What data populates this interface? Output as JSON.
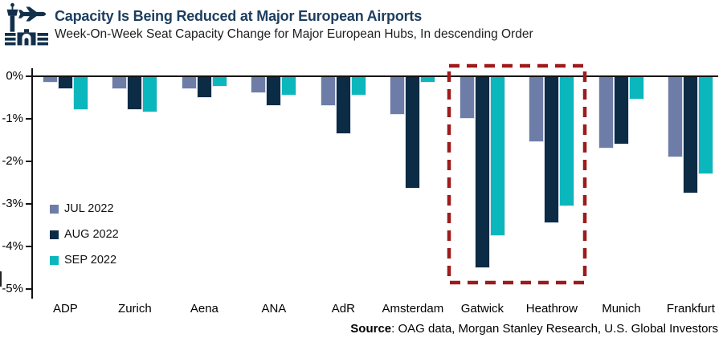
{
  "header": {
    "title": "Capacity Is Being Reduced at Major European Airports",
    "subtitle": "Week-On-Week Seat Capacity Change for Major European Hubs, In descending Order"
  },
  "colors": {
    "title_navy": "#1d3e5f",
    "icon_navy": "#12304b",
    "jul": "#6e7da7",
    "aug": "#0c2b45",
    "sep": "#0ab7bc",
    "highlight_red": "#9e1b1b",
    "axis": "#111111"
  },
  "chart_data": {
    "type": "bar",
    "title": "Capacity Is Being Reduced at Major European Airports",
    "subtitle": "Week-On-Week Seat Capacity Change for Major European Hubs, In descending Order",
    "categories": [
      "ADP",
      "Zurich",
      "Aena",
      "ANA",
      "AdR",
      "Amsterdam",
      "Gatwick",
      "Heathrow",
      "Munich",
      "Frankfurt"
    ],
    "series": [
      {
        "name": "JUL 2022",
        "color": "#6e7da7",
        "values": [
          -0.15,
          -0.3,
          -0.3,
          -0.4,
          -0.7,
          -0.9,
          -1.0,
          -1.55,
          -1.7,
          -1.9
        ]
      },
      {
        "name": "AUG 2022",
        "color": "#0c2b45",
        "values": [
          -0.3,
          -0.8,
          -0.5,
          -0.7,
          -1.35,
          -2.65,
          -4.5,
          -3.45,
          -1.6,
          -2.75
        ]
      },
      {
        "name": "SEP 2022",
        "color": "#0ab7bc",
        "values": [
          -0.8,
          -0.85,
          -0.25,
          -0.45,
          -0.45,
          -0.15,
          -3.75,
          -3.05,
          -0.55,
          -2.3
        ]
      }
    ],
    "xlabel": "",
    "ylabel": "",
    "y_ticks": [
      "0%",
      "-1%",
      "-2%",
      "-3%",
      "-4%",
      "-5%"
    ],
    "ylim": [
      -5.3,
      0.3
    ],
    "grid": false,
    "legend_position": "inside-left",
    "highlighted_categories": [
      "Gatwick",
      "Heathrow"
    ]
  },
  "source": {
    "label": "Source",
    "rest": ": OAG data, Morgan Stanley Research, U.S. Global Investors"
  }
}
